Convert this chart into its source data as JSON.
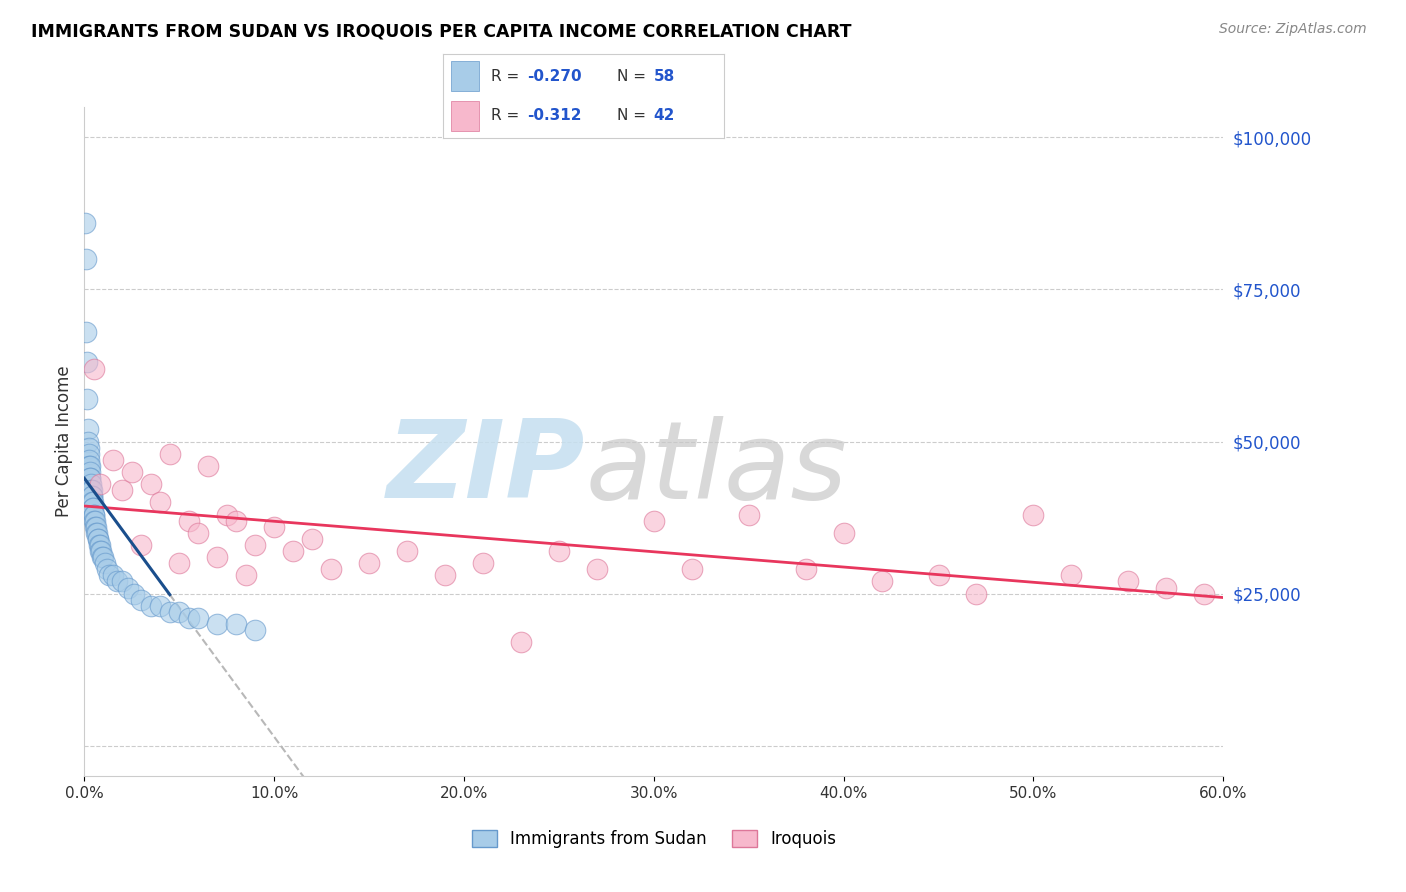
{
  "title": "IMMIGRANTS FROM SUDAN VS IROQUOIS PER CAPITA INCOME CORRELATION CHART",
  "source": "Source: ZipAtlas.com",
  "ylabel": "Per Capita Income",
  "y_ticks": [
    0,
    25000,
    50000,
    75000,
    100000
  ],
  "y_tick_labels": [
    "",
    "$25,000",
    "$50,000",
    "$75,000",
    "$100,000"
  ],
  "x_min": 0.0,
  "x_max": 60.0,
  "y_min": -5000,
  "y_max": 105000,
  "color_blue": "#a8cce8",
  "color_pink": "#f7b8cc",
  "color_blue_line": "#1a4e8c",
  "color_pink_line": "#e8365d",
  "color_dashed": "#b8b8b8",
  "color_watermark_zip": "#c5dff0",
  "color_watermark_atlas": "#c8c8c8",
  "color_ytick": "#2255cc",
  "sudan_x": [
    0.05,
    0.08,
    0.1,
    0.12,
    0.15,
    0.18,
    0.2,
    0.22,
    0.22,
    0.25,
    0.25,
    0.28,
    0.3,
    0.3,
    0.32,
    0.35,
    0.35,
    0.38,
    0.4,
    0.4,
    0.42,
    0.45,
    0.45,
    0.48,
    0.5,
    0.5,
    0.52,
    0.55,
    0.58,
    0.6,
    0.62,
    0.65,
    0.7,
    0.72,
    0.75,
    0.8,
    0.85,
    0.9,
    0.95,
    1.0,
    1.1,
    1.2,
    1.3,
    1.5,
    1.7,
    2.0,
    2.3,
    2.6,
    3.0,
    3.5,
    4.0,
    4.5,
    5.0,
    5.5,
    6.0,
    7.0,
    8.0,
    9.0
  ],
  "sudan_y": [
    86000,
    80000,
    68000,
    63000,
    57000,
    52000,
    50000,
    49000,
    48000,
    47000,
    46000,
    46000,
    45000,
    44000,
    44000,
    43000,
    42000,
    42000,
    41000,
    41000,
    40000,
    40000,
    39000,
    39000,
    38000,
    38000,
    37000,
    37000,
    36000,
    36000,
    35000,
    35000,
    34000,
    34000,
    33000,
    33000,
    32000,
    32000,
    31000,
    31000,
    30000,
    29000,
    28000,
    28000,
    27000,
    27000,
    26000,
    25000,
    24000,
    23000,
    23000,
    22000,
    22000,
    21000,
    21000,
    20000,
    20000,
    19000
  ],
  "iroquois_x": [
    0.5,
    0.8,
    1.5,
    2.0,
    2.5,
    3.0,
    3.5,
    4.0,
    4.5,
    5.0,
    5.5,
    6.0,
    6.5,
    7.0,
    7.5,
    8.0,
    8.5,
    9.0,
    10.0,
    11.0,
    12.0,
    13.0,
    15.0,
    17.0,
    19.0,
    21.0,
    23.0,
    25.0,
    27.0,
    30.0,
    32.0,
    35.0,
    38.0,
    40.0,
    42.0,
    45.0,
    47.0,
    50.0,
    52.0,
    55.0,
    57.0,
    59.0
  ],
  "iroquois_y": [
    62000,
    43000,
    47000,
    42000,
    45000,
    33000,
    43000,
    40000,
    48000,
    30000,
    37000,
    35000,
    46000,
    31000,
    38000,
    37000,
    28000,
    33000,
    36000,
    32000,
    34000,
    29000,
    30000,
    32000,
    28000,
    30000,
    17000,
    32000,
    29000,
    37000,
    29000,
    38000,
    29000,
    35000,
    27000,
    28000,
    25000,
    38000,
    28000,
    27000,
    26000,
    25000
  ],
  "blue_line_x0": 0.0,
  "blue_line_x1": 4.5,
  "pink_line_x0": 0.0,
  "pink_line_x1": 60.0,
  "dashed_line_x0": 4.5,
  "dashed_line_x1": 42.0
}
